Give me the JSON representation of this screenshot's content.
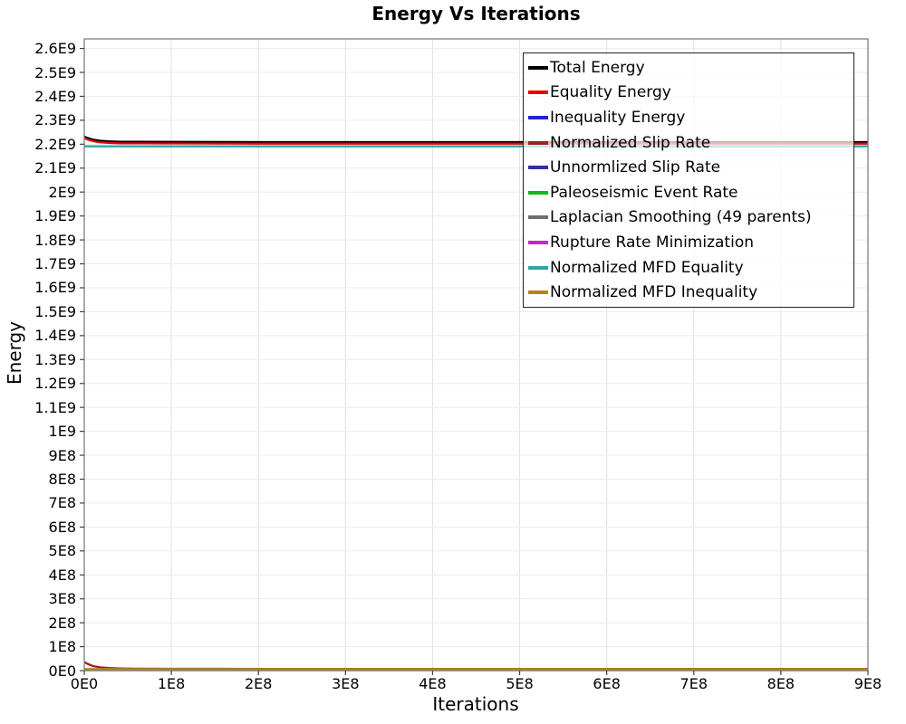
{
  "chart_data": {
    "type": "line",
    "title": "Energy Vs Iterations",
    "xlabel": "Iterations",
    "ylabel": "Energy",
    "xlim": [
      0,
      900000000
    ],
    "ylim": [
      0,
      2640000000
    ],
    "grid": true,
    "legend_position": "top-right",
    "x_ticks": [
      {
        "v": 0,
        "label": "0E0"
      },
      {
        "v": 100000000,
        "label": "1E8"
      },
      {
        "v": 200000000,
        "label": "2E8"
      },
      {
        "v": 300000000,
        "label": "3E8"
      },
      {
        "v": 400000000,
        "label": "4E8"
      },
      {
        "v": 500000000,
        "label": "5E8"
      },
      {
        "v": 600000000,
        "label": "6E8"
      },
      {
        "v": 700000000,
        "label": "7E8"
      },
      {
        "v": 800000000,
        "label": "8E8"
      },
      {
        "v": 900000000,
        "label": "9E8"
      }
    ],
    "y_ticks": [
      {
        "v": 0,
        "label": "0E0"
      },
      {
        "v": 100000000,
        "label": "1E8"
      },
      {
        "v": 200000000,
        "label": "2E8"
      },
      {
        "v": 300000000,
        "label": "3E8"
      },
      {
        "v": 400000000,
        "label": "4E8"
      },
      {
        "v": 500000000,
        "label": "5E8"
      },
      {
        "v": 600000000,
        "label": "6E8"
      },
      {
        "v": 700000000,
        "label": "7E8"
      },
      {
        "v": 800000000,
        "label": "8E8"
      },
      {
        "v": 900000000,
        "label": "9E8"
      },
      {
        "v": 1000000000,
        "label": "1E9"
      },
      {
        "v": 1100000000,
        "label": "1.1E9"
      },
      {
        "v": 1200000000,
        "label": "1.2E9"
      },
      {
        "v": 1300000000,
        "label": "1.3E9"
      },
      {
        "v": 1400000000,
        "label": "1.4E9"
      },
      {
        "v": 1500000000,
        "label": "1.5E9"
      },
      {
        "v": 1600000000,
        "label": "1.6E9"
      },
      {
        "v": 1700000000,
        "label": "1.7E9"
      },
      {
        "v": 1800000000,
        "label": "1.8E9"
      },
      {
        "v": 1900000000,
        "label": "1.9E9"
      },
      {
        "v": 2000000000,
        "label": "2E9"
      },
      {
        "v": 2100000000,
        "label": "2.1E9"
      },
      {
        "v": 2200000000,
        "label": "2.2E9"
      },
      {
        "v": 2300000000,
        "label": "2.3E9"
      },
      {
        "v": 2400000000,
        "label": "2.4E9"
      },
      {
        "v": 2500000000,
        "label": "2.5E9"
      },
      {
        "v": 2600000000,
        "label": "2.6E9"
      }
    ],
    "series": [
      {
        "name": "Total Energy",
        "color": "#000000",
        "points": [
          [
            0,
            2232000000.0
          ],
          [
            4000000.0,
            2226000000.0
          ],
          [
            10000000.0,
            2219000000.0
          ],
          [
            18000000.0,
            2214500000.0
          ],
          [
            28000000.0,
            2212000000.0
          ],
          [
            40000000.0,
            2210500000.0
          ],
          [
            60000000.0,
            2210000000.0
          ],
          [
            100000000.0,
            2209500000.0
          ],
          [
            200000000.0,
            2209000000.0
          ],
          [
            900000000.0,
            2209000000.0
          ]
        ]
      },
      {
        "name": "Equality Energy",
        "color": "#e60000",
        "points": [
          [
            0,
            2225500000.0
          ],
          [
            4000000.0,
            2219500000.0
          ],
          [
            10000000.0,
            2212500000.0
          ],
          [
            18000000.0,
            2208000000.0
          ],
          [
            28000000.0,
            2205500000.0
          ],
          [
            40000000.0,
            2204000000.0
          ],
          [
            60000000.0,
            2203500000.0
          ],
          [
            100000000.0,
            2203000000.0
          ],
          [
            200000000.0,
            2202500000.0
          ],
          [
            900000000.0,
            2202500000.0
          ]
        ]
      },
      {
        "name": "Inequality Energy",
        "color": "#2323cc",
        "points": [
          [
            0,
            2500000.0
          ],
          [
            900000000.0,
            2500000.0
          ]
        ]
      },
      {
        "name": "Normalized Slip Rate",
        "color": "#9e1f1f",
        "points": [
          [
            0,
            36000000.0
          ],
          [
            4000000.0,
            28000000.0
          ],
          [
            10000000.0,
            19000000.0
          ],
          [
            18000000.0,
            13500000.0
          ],
          [
            28000000.0,
            10500000.0
          ],
          [
            40000000.0,
            9000000.0
          ],
          [
            60000000.0,
            8000000.0
          ],
          [
            100000000.0,
            7500000.0
          ],
          [
            200000000.0,
            7000000.0
          ],
          [
            900000000.0,
            7000000.0
          ]
        ]
      },
      {
        "name": "Unnormlized Slip Rate",
        "color": "#31319e",
        "points": [
          [
            0,
            3500000.0
          ],
          [
            900000000.0,
            3500000.0
          ]
        ]
      },
      {
        "name": "Paleoseismic Event Rate",
        "color": "#11bb11",
        "points": [
          [
            0,
            5000000.0
          ],
          [
            900000000.0,
            5000000.0
          ]
        ]
      },
      {
        "name": "Laplacian Smoothing (49 parents)",
        "color": "#6e6e6e",
        "points": [
          [
            0,
            4000000.0
          ],
          [
            900000000.0,
            4000000.0
          ]
        ]
      },
      {
        "name": "Rupture Rate Minimization",
        "color": "#cc22cc",
        "points": [
          [
            0,
            2000000.0
          ],
          [
            900000000.0,
            2000000.0
          ]
        ]
      },
      {
        "name": "Normalized MFD Equality",
        "color": "#29a8a8",
        "points": [
          [
            0,
            2191000000.0
          ],
          [
            900000000.0,
            2191000000.0
          ]
        ]
      },
      {
        "name": "Normalized MFD Inequality",
        "color": "#ae861c",
        "points": [
          [
            0,
            6500000.0
          ],
          [
            900000000.0,
            6500000.0
          ]
        ]
      }
    ]
  }
}
